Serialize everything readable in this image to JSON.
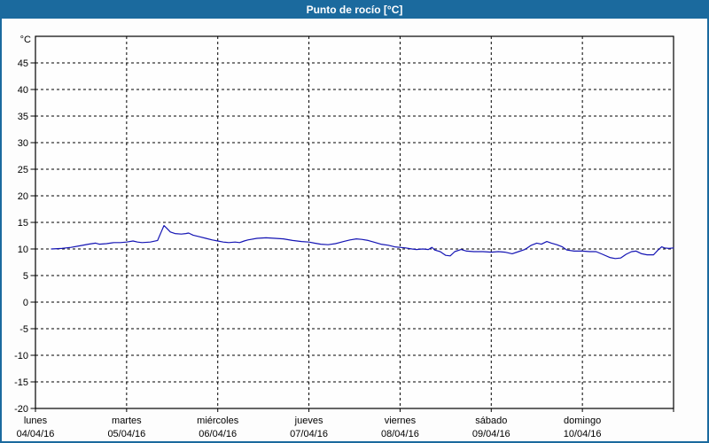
{
  "header": {
    "title": "Punto de rocío [°C]"
  },
  "colors": {
    "titlebar_bg": "#1b6a9e",
    "frame_border": "#1b6a9e",
    "title_text": "#ffffff",
    "axis_text": "#000000",
    "grid": "#000000",
    "plot_bg": "#fefefe",
    "window_bg": "#fdfdfd",
    "line": "#1414b4"
  },
  "chart_data": {
    "type": "line",
    "title": "Punto de rocío [°C]",
    "ylabel": "°C",
    "y_unit_label": "°C",
    "ylim": [
      -20,
      50
    ],
    "y_tick_step": 5,
    "y_ticks": [
      45,
      40,
      35,
      30,
      25,
      20,
      15,
      10,
      5,
      0,
      -5,
      -10,
      -15,
      -20
    ],
    "grid": "dashed",
    "legend_position": "none",
    "x_days": [
      {
        "name": "lunes",
        "date": "04/04/16"
      },
      {
        "name": "martes",
        "date": "05/04/16"
      },
      {
        "name": "miércoles",
        "date": "06/04/16"
      },
      {
        "name": "jueves",
        "date": "07/04/16"
      },
      {
        "name": "viernes",
        "date": "08/04/16"
      },
      {
        "name": "sábado",
        "date": "09/04/16"
      },
      {
        "name": "domingo",
        "date": "10/04/16"
      }
    ],
    "x_range_days": [
      0,
      7
    ],
    "series": [
      {
        "name": "Punto de rocío",
        "color": "#1414b4",
        "points": [
          [
            0.175,
            10.0
          ],
          [
            0.29,
            10.1
          ],
          [
            0.39,
            10.3
          ],
          [
            0.49,
            10.6
          ],
          [
            0.58,
            10.9
          ],
          [
            0.66,
            11.1
          ],
          [
            0.7,
            10.9
          ],
          [
            0.78,
            11.0
          ],
          [
            0.86,
            11.2
          ],
          [
            0.93,
            11.2
          ],
          [
            1.0,
            11.3
          ],
          [
            1.07,
            11.5
          ],
          [
            1.12,
            11.3
          ],
          [
            1.17,
            11.2
          ],
          [
            1.26,
            11.3
          ],
          [
            1.34,
            11.6
          ],
          [
            1.38,
            13.2
          ],
          [
            1.41,
            14.4
          ],
          [
            1.44,
            13.9
          ],
          [
            1.48,
            13.2
          ],
          [
            1.53,
            12.9
          ],
          [
            1.6,
            12.8
          ],
          [
            1.65,
            12.9
          ],
          [
            1.68,
            13.0
          ],
          [
            1.73,
            12.6
          ],
          [
            1.8,
            12.3
          ],
          [
            1.87,
            12.0
          ],
          [
            1.94,
            11.7
          ],
          [
            2.0,
            11.5
          ],
          [
            2.06,
            11.3
          ],
          [
            2.12,
            11.2
          ],
          [
            2.19,
            11.3
          ],
          [
            2.24,
            11.2
          ],
          [
            2.29,
            11.5
          ],
          [
            2.33,
            11.7
          ],
          [
            2.43,
            12.0
          ],
          [
            2.53,
            12.1
          ],
          [
            2.63,
            12.0
          ],
          [
            2.72,
            11.9
          ],
          [
            2.82,
            11.6
          ],
          [
            2.92,
            11.4
          ],
          [
            3.0,
            11.3
          ],
          [
            3.06,
            11.1
          ],
          [
            3.13,
            10.9
          ],
          [
            3.21,
            10.8
          ],
          [
            3.29,
            11.0
          ],
          [
            3.38,
            11.4
          ],
          [
            3.45,
            11.7
          ],
          [
            3.52,
            11.9
          ],
          [
            3.58,
            11.8
          ],
          [
            3.65,
            11.6
          ],
          [
            3.71,
            11.3
          ],
          [
            3.79,
            10.9
          ],
          [
            3.87,
            10.7
          ],
          [
            3.94,
            10.4
          ],
          [
            4.0,
            10.3
          ],
          [
            4.06,
            10.2
          ],
          [
            4.13,
            10.0
          ],
          [
            4.18,
            9.9
          ],
          [
            4.25,
            10.0
          ],
          [
            4.31,
            9.9
          ],
          [
            4.35,
            10.3
          ],
          [
            4.38,
            9.8
          ],
          [
            4.44,
            9.5
          ],
          [
            4.5,
            8.8
          ],
          [
            4.55,
            8.7
          ],
          [
            4.6,
            9.5
          ],
          [
            4.67,
            9.9
          ],
          [
            4.73,
            9.6
          ],
          [
            4.81,
            9.5
          ],
          [
            4.91,
            9.5
          ],
          [
            5.0,
            9.4
          ],
          [
            5.08,
            9.5
          ],
          [
            5.15,
            9.4
          ],
          [
            5.23,
            9.1
          ],
          [
            5.3,
            9.5
          ],
          [
            5.37,
            9.9
          ],
          [
            5.44,
            10.7
          ],
          [
            5.5,
            11.1
          ],
          [
            5.55,
            10.9
          ],
          [
            5.61,
            11.4
          ],
          [
            5.66,
            11.1
          ],
          [
            5.72,
            10.8
          ],
          [
            5.78,
            10.4
          ],
          [
            5.83,
            9.8
          ],
          [
            5.91,
            9.6
          ],
          [
            6.0,
            9.6
          ],
          [
            6.08,
            9.5
          ],
          [
            6.15,
            9.5
          ],
          [
            6.22,
            9.0
          ],
          [
            6.3,
            8.4
          ],
          [
            6.36,
            8.2
          ],
          [
            6.42,
            8.3
          ],
          [
            6.48,
            9.0
          ],
          [
            6.54,
            9.5
          ],
          [
            6.59,
            9.6
          ],
          [
            6.65,
            9.1
          ],
          [
            6.71,
            8.9
          ],
          [
            6.78,
            8.9
          ],
          [
            6.83,
            9.8
          ],
          [
            6.87,
            10.4
          ],
          [
            6.9,
            10.2
          ],
          [
            6.95,
            10.1
          ],
          [
            7.0,
            10.2
          ]
        ]
      }
    ]
  }
}
